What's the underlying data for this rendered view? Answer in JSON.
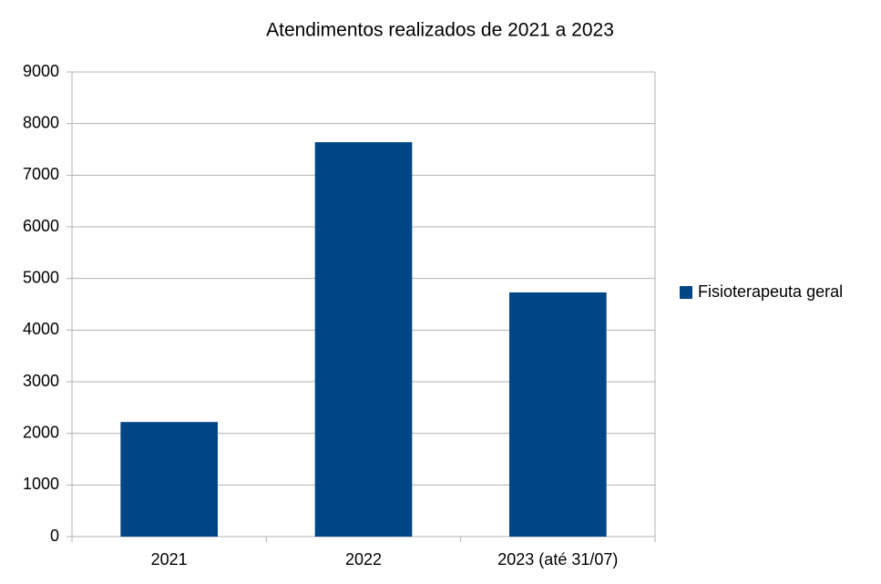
{
  "chart_data": {
    "type": "bar",
    "title": "Atendimentos realizados de 2021 a 2023",
    "categories": [
      "2021",
      "2022",
      "2023 (até 31/07)"
    ],
    "series": [
      {
        "name": "Fisioterapeuta geral",
        "color": "#004586",
        "values": [
          2220,
          7640,
          4730
        ]
      }
    ],
    "ylim": [
      0,
      9000
    ],
    "yticks": [
      0,
      1000,
      2000,
      3000,
      4000,
      5000,
      6000,
      7000,
      8000,
      9000
    ],
    "grid": true,
    "legend": "right"
  }
}
